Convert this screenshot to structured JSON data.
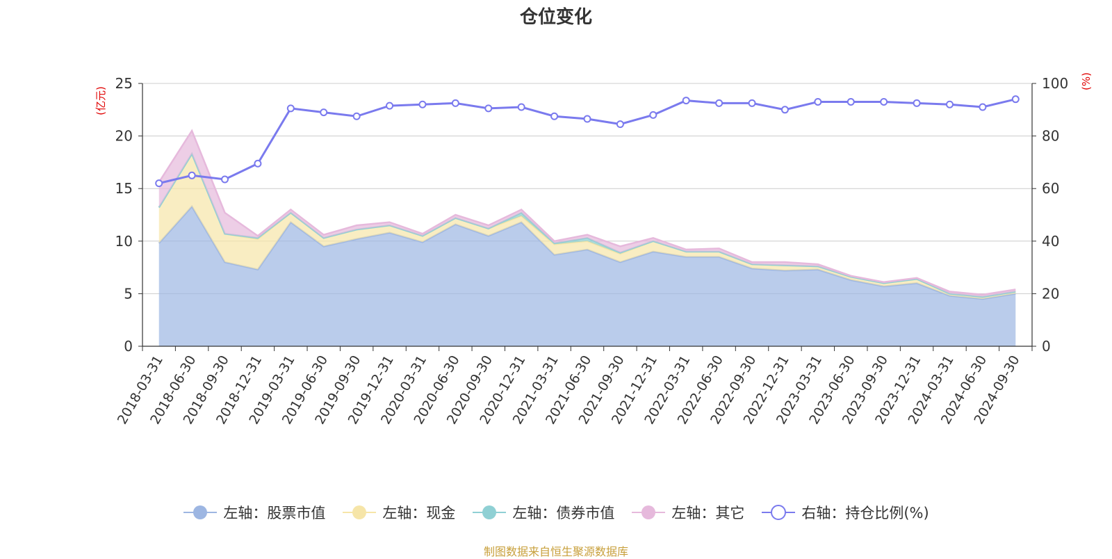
{
  "chart_data": {
    "type": "area",
    "title": "仓位变化",
    "left_axis_unit": "(亿元)",
    "right_axis_unit": "(%)",
    "left_ylim": [
      0,
      25
    ],
    "left_ticks": [
      0,
      5,
      10,
      15,
      20,
      25
    ],
    "right_ylim": [
      0,
      100
    ],
    "right_ticks": [
      0,
      20,
      40,
      60,
      80,
      100
    ],
    "categories": [
      "2018-03-31",
      "2018-06-30",
      "2018-09-30",
      "2018-12-31",
      "2019-03-31",
      "2019-06-30",
      "2019-09-30",
      "2019-12-31",
      "2020-03-31",
      "2020-06-30",
      "2020-09-30",
      "2020-12-31",
      "2021-03-31",
      "2021-06-30",
      "2021-09-30",
      "2021-12-31",
      "2022-03-31",
      "2022-06-30",
      "2022-09-30",
      "2022-12-31",
      "2023-03-31",
      "2023-06-30",
      "2023-09-30",
      "2023-12-31",
      "2024-03-31",
      "2024-06-30",
      "2024-09-30"
    ],
    "series": [
      {
        "name": "左轴：股票市值",
        "axis": "left",
        "color": "#9db6e2",
        "values": [
          9.8,
          13.3,
          8.0,
          7.3,
          11.8,
          9.5,
          10.2,
          10.8,
          9.9,
          11.6,
          10.5,
          11.8,
          8.7,
          9.2,
          8.0,
          9.0,
          8.5,
          8.5,
          7.4,
          7.2,
          7.3,
          6.3,
          5.7,
          6.0,
          4.8,
          4.5,
          5.0
        ]
      },
      {
        "name": "左轴：现金",
        "axis": "left",
        "color": "#f6e5a8",
        "values": [
          3.4,
          5.0,
          2.7,
          2.9,
          0.9,
          0.8,
          0.9,
          0.7,
          0.6,
          0.6,
          0.7,
          0.6,
          1.0,
          0.8,
          0.8,
          1.0,
          0.5,
          0.5,
          0.4,
          0.5,
          0.3,
          0.3,
          0.3,
          0.4,
          0.2,
          0.2,
          0.2
        ]
      },
      {
        "name": "左轴：债券市值",
        "axis": "left",
        "color": "#8fd0d4",
        "values": [
          0,
          0,
          0,
          0.1,
          0,
          0,
          0,
          0,
          0,
          0,
          0,
          0.3,
          0.1,
          0.3,
          0.1,
          0,
          0,
          0,
          0,
          0,
          0,
          0,
          0,
          0,
          0,
          0,
          0
        ]
      },
      {
        "name": "左轴：其它",
        "axis": "left",
        "color": "#e6b9dc",
        "values": [
          2.4,
          2.2,
          2.0,
          0.2,
          0.3,
          0.3,
          0.4,
          0.3,
          0.2,
          0.3,
          0.3,
          0.3,
          0.2,
          0.3,
          0.6,
          0.3,
          0.2,
          0.3,
          0.2,
          0.3,
          0.2,
          0.1,
          0.1,
          0.1,
          0.2,
          0.2,
          0.2
        ]
      },
      {
        "name": "右轴：持仓比例(%)",
        "axis": "right",
        "color": "#7a7aee",
        "values": [
          62,
          65,
          63.5,
          69.5,
          90.5,
          89,
          87.5,
          91.5,
          92,
          92.5,
          90.5,
          91,
          87.5,
          86.5,
          84.5,
          88,
          93.5,
          92.5,
          92.5,
          90,
          93,
          93,
          93,
          92.5,
          92,
          91,
          94
        ]
      }
    ],
    "source": "制图数据来自恒生聚源数据库"
  }
}
